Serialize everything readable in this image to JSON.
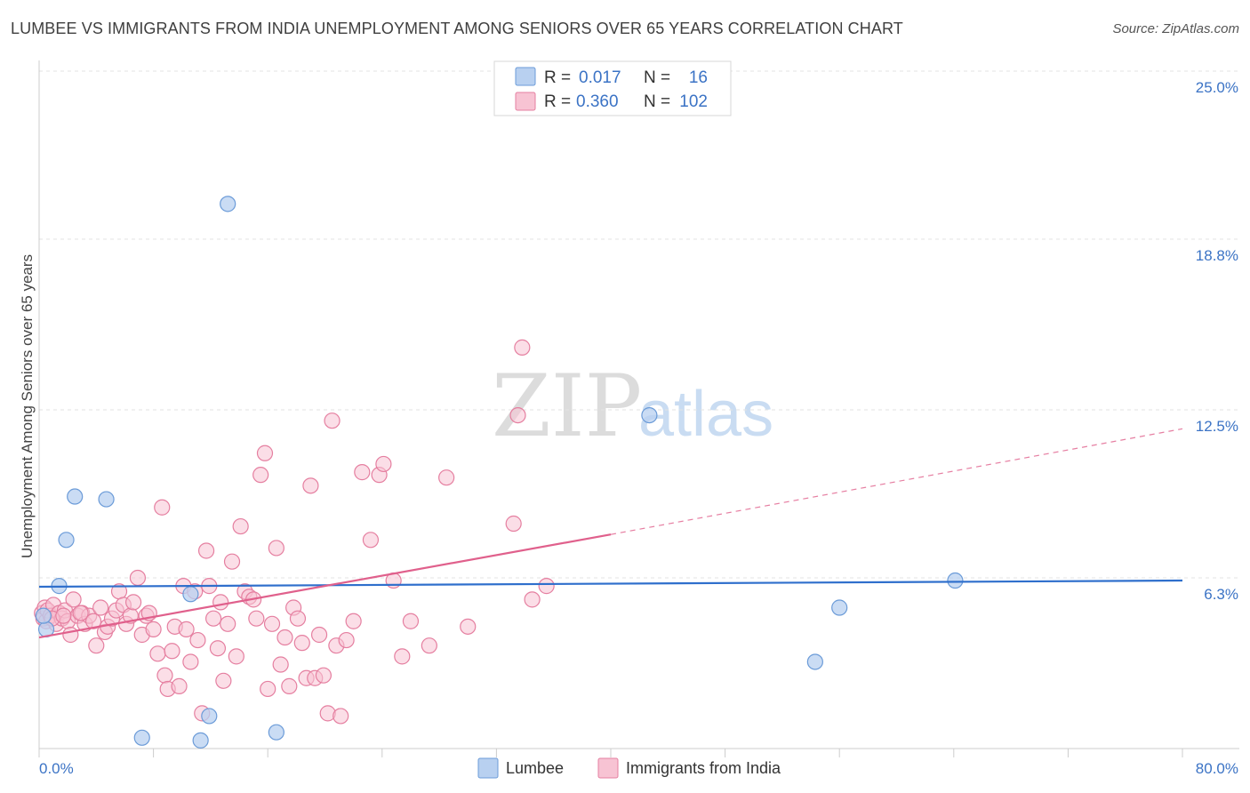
{
  "title": "LUMBEE VS IMMIGRANTS FROM INDIA UNEMPLOYMENT AMONG SENIORS OVER 65 YEARS CORRELATION CHART",
  "source": "Source: ZipAtlas.com",
  "watermark": {
    "zip": "ZIP",
    "atlas": "atlas"
  },
  "chart_data": {
    "type": "scatter",
    "title": "LUMBEE VS IMMIGRANTS FROM INDIA UNEMPLOYMENT AMONG SENIORS OVER 65 YEARS CORRELATION CHART",
    "xlabel": "",
    "ylabel": "Unemployment Among Seniors over 65 years",
    "xlim": [
      0,
      80
    ],
    "ylim": [
      0,
      25
    ],
    "x_tick_labels": [
      "0.0%",
      "80.0%"
    ],
    "y_ticks": [
      6.3,
      12.5,
      18.8,
      25.0
    ],
    "y_tick_labels": [
      "6.3%",
      "12.5%",
      "18.8%",
      "25.0%"
    ],
    "grid": true,
    "legend_position": "top-center",
    "legend": [
      {
        "r_label": "R =",
        "r_value": "0.017",
        "n_label": "N =",
        "n_value": "16"
      },
      {
        "r_label": "R =",
        "r_value": "0.360",
        "n_label": "N =",
        "n_value": "102"
      }
    ],
    "bottom_legend": [
      "Lumbee",
      "Immigrants from India"
    ],
    "colors": {
      "lumbee_fill": "#b8d0f0",
      "lumbee_stroke": "#6b9bd8",
      "lumbee_line": "#2f6fcc",
      "india_fill": "#f7c3d3",
      "india_stroke": "#e57fa0",
      "india_line": "#e0608c"
    },
    "series": [
      {
        "name": "Lumbee",
        "trend": {
          "x0": 0,
          "y0": 5.97,
          "x1": 80,
          "y1": 6.2
        },
        "points": [
          [
            0.5,
            4.4
          ],
          [
            1.4,
            6.0
          ],
          [
            1.9,
            7.7
          ],
          [
            2.5,
            9.3
          ],
          [
            4.7,
            9.2
          ],
          [
            7.2,
            0.4
          ],
          [
            10.6,
            5.7
          ],
          [
            11.3,
            0.3
          ],
          [
            11.9,
            1.2
          ],
          [
            13.2,
            20.1
          ],
          [
            16.6,
            0.6
          ],
          [
            42.7,
            12.3
          ],
          [
            54.3,
            3.2
          ],
          [
            56.0,
            5.2
          ],
          [
            64.1,
            6.2
          ],
          [
            0.3,
            4.9
          ]
        ]
      },
      {
        "name": "Immigrants from India",
        "trend_solid": {
          "x0": 0,
          "y0": 4.1,
          "x1": 40,
          "y1": 7.9
        },
        "trend_dashed": {
          "x0": 40,
          "y0": 7.9,
          "x1": 80,
          "y1": 11.8
        },
        "points": [
          [
            0.2,
            5.0
          ],
          [
            0.3,
            4.8
          ],
          [
            0.4,
            5.2
          ],
          [
            0.5,
            4.7
          ],
          [
            0.6,
            5.1
          ],
          [
            0.8,
            4.9
          ],
          [
            1.0,
            5.3
          ],
          [
            1.2,
            4.6
          ],
          [
            1.4,
            5.0
          ],
          [
            1.6,
            4.8
          ],
          [
            1.8,
            5.1
          ],
          [
            2.0,
            4.7
          ],
          [
            2.2,
            4.2
          ],
          [
            2.4,
            5.5
          ],
          [
            2.7,
            4.9
          ],
          [
            3.0,
            5.0
          ],
          [
            3.2,
            4.6
          ],
          [
            3.5,
            4.9
          ],
          [
            3.8,
            4.7
          ],
          [
            4.0,
            3.8
          ],
          [
            4.3,
            5.2
          ],
          [
            4.6,
            4.3
          ],
          [
            4.8,
            4.5
          ],
          [
            5.1,
            4.8
          ],
          [
            5.4,
            5.1
          ],
          [
            5.6,
            5.8
          ],
          [
            5.9,
            5.3
          ],
          [
            6.1,
            4.6
          ],
          [
            6.4,
            4.9
          ],
          [
            6.6,
            5.4
          ],
          [
            6.9,
            6.3
          ],
          [
            7.2,
            4.2
          ],
          [
            7.5,
            4.9
          ],
          [
            7.7,
            5.0
          ],
          [
            8.0,
            4.4
          ],
          [
            8.3,
            3.5
          ],
          [
            8.6,
            8.9
          ],
          [
            8.8,
            2.7
          ],
          [
            9.0,
            2.2
          ],
          [
            9.3,
            3.6
          ],
          [
            9.5,
            4.5
          ],
          [
            9.8,
            2.3
          ],
          [
            10.1,
            6.0
          ],
          [
            10.3,
            4.4
          ],
          [
            10.6,
            3.2
          ],
          [
            10.9,
            5.8
          ],
          [
            11.1,
            4.0
          ],
          [
            11.4,
            1.3
          ],
          [
            11.7,
            7.3
          ],
          [
            11.9,
            6.0
          ],
          [
            12.2,
            4.8
          ],
          [
            12.5,
            3.7
          ],
          [
            12.7,
            5.4
          ],
          [
            12.9,
            2.5
          ],
          [
            13.2,
            4.6
          ],
          [
            13.5,
            6.9
          ],
          [
            13.8,
            3.4
          ],
          [
            14.1,
            8.2
          ],
          [
            14.4,
            5.8
          ],
          [
            14.7,
            5.6
          ],
          [
            15.0,
            5.5
          ],
          [
            15.2,
            4.8
          ],
          [
            15.5,
            10.1
          ],
          [
            15.8,
            10.9
          ],
          [
            16.0,
            2.2
          ],
          [
            16.3,
            4.6
          ],
          [
            16.6,
            7.4
          ],
          [
            16.9,
            3.1
          ],
          [
            17.2,
            4.1
          ],
          [
            17.5,
            2.3
          ],
          [
            17.8,
            5.2
          ],
          [
            18.1,
            4.8
          ],
          [
            18.4,
            3.9
          ],
          [
            18.7,
            2.6
          ],
          [
            19.0,
            9.7
          ],
          [
            19.3,
            2.6
          ],
          [
            19.6,
            4.2
          ],
          [
            19.9,
            2.7
          ],
          [
            20.2,
            1.3
          ],
          [
            20.5,
            12.1
          ],
          [
            20.8,
            3.8
          ],
          [
            21.1,
            1.2
          ],
          [
            21.5,
            4.0
          ],
          [
            22.0,
            4.7
          ],
          [
            22.6,
            10.2
          ],
          [
            23.2,
            7.7
          ],
          [
            23.8,
            10.1
          ],
          [
            24.1,
            10.5
          ],
          [
            24.8,
            6.2
          ],
          [
            25.4,
            3.4
          ],
          [
            26.0,
            4.7
          ],
          [
            27.3,
            3.8
          ],
          [
            28.5,
            10.0
          ],
          [
            30.0,
            4.5
          ],
          [
            33.2,
            8.3
          ],
          [
            33.5,
            12.3
          ],
          [
            33.8,
            14.8
          ],
          [
            34.5,
            5.5
          ],
          [
            35.5,
            6.0
          ],
          [
            0.9,
            4.8
          ],
          [
            2.9,
            5.0
          ],
          [
            1.7,
            4.9
          ]
        ]
      }
    ]
  }
}
